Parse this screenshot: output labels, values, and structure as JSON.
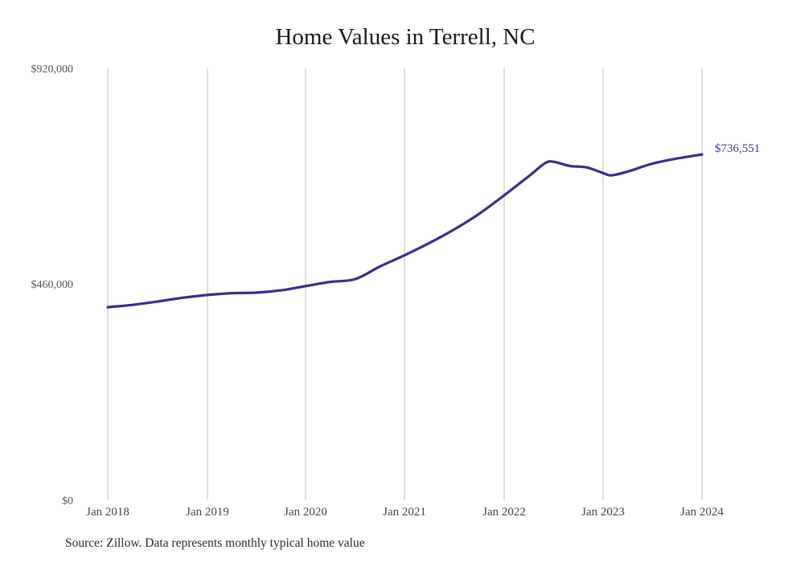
{
  "chart_data": {
    "type": "line",
    "title": "Home Values in Terrell, NC",
    "xlabel": "",
    "ylabel": "",
    "ylim": [
      0,
      920000
    ],
    "y_ticks": [
      "$0",
      "$460,000",
      "$920,000"
    ],
    "y_tick_values": [
      0,
      460000,
      920000
    ],
    "x_ticks": [
      "Jan 2018",
      "Jan 2019",
      "Jan 2020",
      "Jan 2021",
      "Jan 2022",
      "Jan 2023",
      "Jan 2024"
    ],
    "grid": {
      "vertical": true,
      "horizontal": false
    },
    "legend": null,
    "line_color": "#35308f",
    "series": [
      {
        "name": "Typical home value",
        "x": [
          "2018-01",
          "2018-04",
          "2018-07",
          "2018-10",
          "2019-01",
          "2019-04",
          "2019-07",
          "2019-10",
          "2020-01",
          "2020-04",
          "2020-07",
          "2020-10",
          "2021-01",
          "2021-04",
          "2021-07",
          "2021-10",
          "2022-01",
          "2022-04",
          "2022-06",
          "2022-07",
          "2022-09",
          "2022-11",
          "2023-01",
          "2023-02",
          "2023-04",
          "2023-07",
          "2023-10",
          "2024-01"
        ],
        "values": [
          411000,
          416000,
          423000,
          431000,
          437000,
          441000,
          442000,
          447000,
          456000,
          465000,
          471000,
          498000,
          522000,
          548000,
          577000,
          610000,
          649000,
          690000,
          718000,
          721000,
          712000,
          709000,
          697000,
          692000,
          700000,
          717000,
          728000,
          736551
        ]
      }
    ],
    "annotations": [
      {
        "text": "$736,551",
        "at": "2024-01"
      }
    ],
    "source": "Source: Zillow. Data represents monthly typical home value"
  },
  "labels": {
    "title": "Home Values in Terrell, NC",
    "y_top": "$920,000",
    "y_mid": "$460,000",
    "y_bottom": "$0",
    "x0": "Jan 2018",
    "x1": "Jan 2019",
    "x2": "Jan 2020",
    "x3": "Jan 2021",
    "x4": "Jan 2022",
    "x5": "Jan 2023",
    "x6": "Jan 2024",
    "end_value": "$736,551",
    "source": "Source: Zillow. Data represents monthly typical home value"
  }
}
